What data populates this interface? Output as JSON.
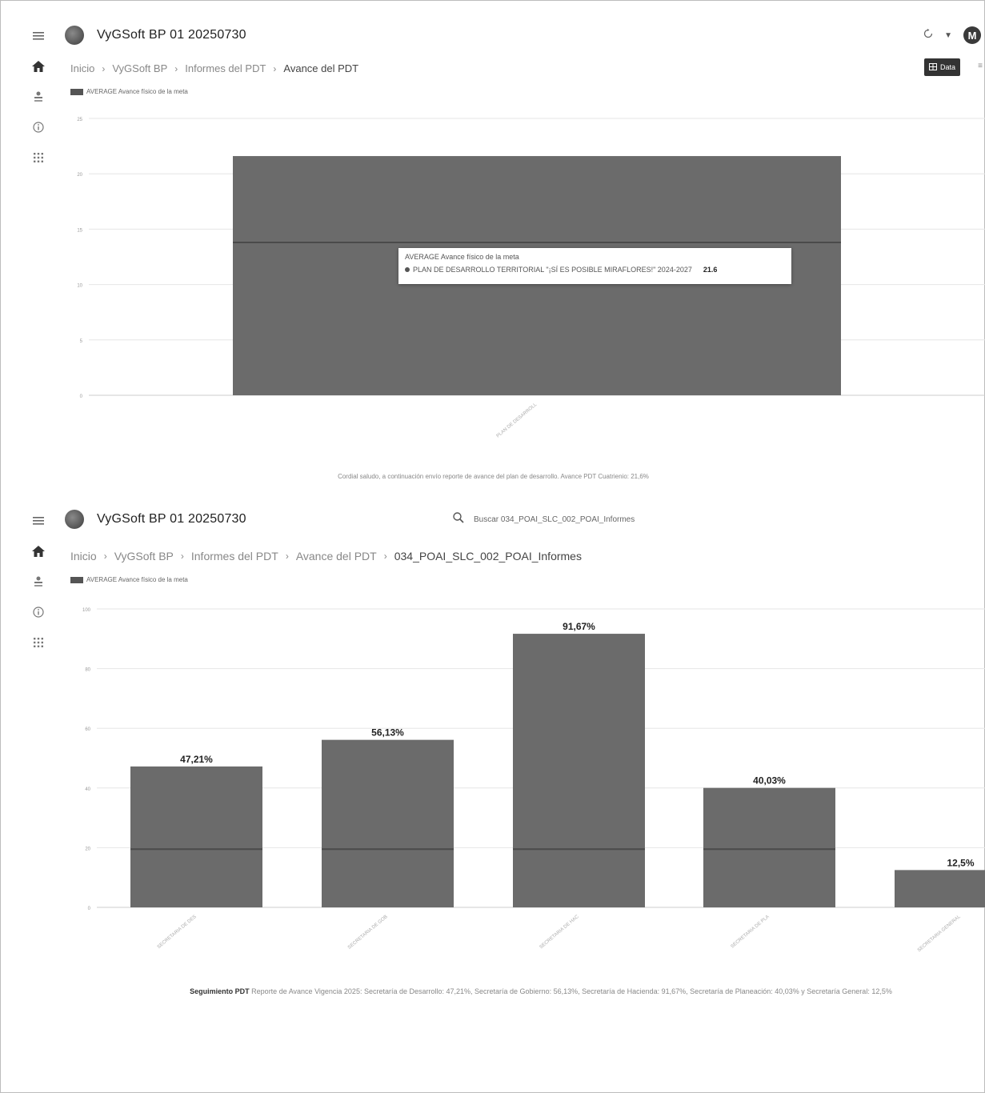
{
  "screen1": {
    "app_title": "VyGSoft BP 01 20250730",
    "avatar_initial": "M",
    "data_button_label": "Data",
    "breadcrumb": [
      "Inicio",
      "VyGSoft BP",
      "Informes del PDT",
      "Avance del PDT"
    ],
    "legend_label": "AVERAGE Avance físico de la meta",
    "tooltip": {
      "title": "AVERAGE Avance físico de la meta",
      "series_label": "PLAN DE DESARROLLO TERRITORIAL \"¡SÍ ES POSIBLE MIRAFLORES!\" 2024-2027",
      "value": "21.6"
    },
    "caption": "Cordial saludo, a continuación envío reporte de avance del plan de desarrollo. Avance PDT Cuatrienio: 21,6%"
  },
  "screen2": {
    "app_title": "VyGSoft BP 01 20250730",
    "search_placeholder": "Buscar 034_POAI_SLC_002_POAI_Informes",
    "breadcrumb": [
      "Inicio",
      "VyGSoft BP",
      "Informes del PDT",
      "Avance del PDT",
      "034_POAI_SLC_002_POAI_Informes"
    ],
    "legend_label": "AVERAGE Avance físico de la meta",
    "caption_bold": "Seguimiento PDT",
    "caption_text": " Reporte de Avance Vigencia 2025: Secretaría de Desarrollo: 47,21%, Secretaría de Gobierno: 56,13%, Secretaría de Hacienda: 91,67%, Secretaría de Planeación: 40,03% y Secretaría General: 12,5%"
  },
  "colors": {
    "bar": "#6b6b6b",
    "bar_dark": "#4a4a4a",
    "grid": "#e6e6e6",
    "axis": "#cccccc"
  },
  "chart_data": [
    {
      "type": "bar",
      "categories": [
        "PLAN DE DESARROLL"
      ],
      "series": [
        {
          "name": "AVERAGE Avance físico de la meta",
          "values": [
            21.6
          ]
        }
      ],
      "yticks": [
        0,
        5,
        10,
        15,
        20,
        25
      ],
      "ylim": [
        0,
        25
      ],
      "grid": true,
      "legend": "top-left"
    },
    {
      "type": "bar",
      "categories": [
        "SECRETARIA DE DES",
        "SECRETARIA DE GOB",
        "SECRETARIA DE HAC",
        "SECRETARIA DE PLA",
        "SECRETARIA GENERAL"
      ],
      "series": [
        {
          "name": "AVERAGE Avance físico de la meta",
          "values": [
            47.21,
            56.13,
            91.67,
            40.03,
            12.5
          ]
        }
      ],
      "data_labels": [
        "47,21%",
        "56,13%",
        "91,67%",
        "40,03%",
        "12,5%"
      ],
      "yticks": [
        0,
        20,
        40,
        60,
        80,
        100
      ],
      "ylim": [
        0,
        100
      ],
      "grid": true,
      "legend": "top-left"
    }
  ]
}
